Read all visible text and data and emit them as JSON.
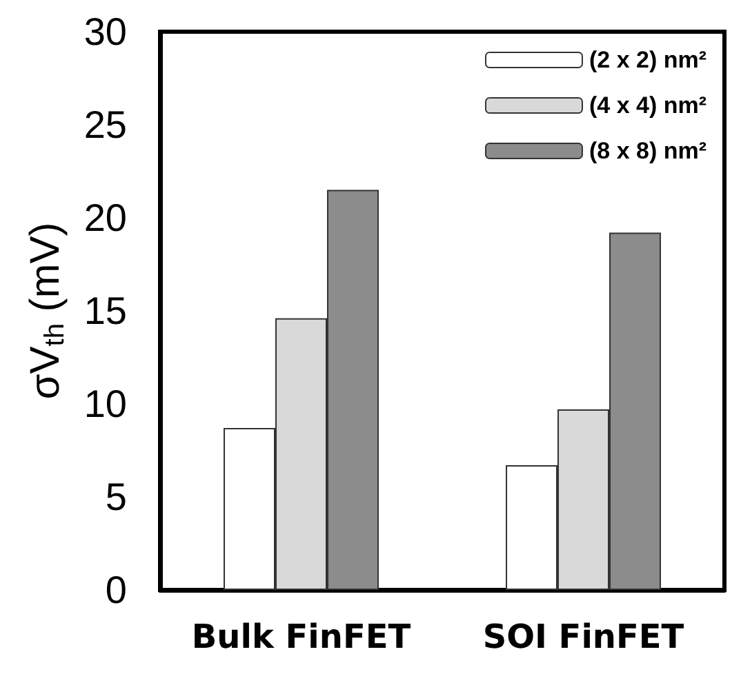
{
  "chart_data": {
    "type": "bar",
    "ylabel": "σV$_{th}$ (mV)",
    "categories": [
      "Bulk FinFET",
      "SOI FinFET"
    ],
    "series": [
      {
        "name": "(2 x 2) nm²",
        "color": "#ffffff",
        "values": [
          8.7,
          6.7
        ]
      },
      {
        "name": "(4 x 4) nm²",
        "color": "#d9d9d9",
        "values": [
          14.6,
          9.7
        ]
      },
      {
        "name": "(8 x 8) nm²",
        "color": "#8c8c8c",
        "values": [
          21.5,
          19.2
        ]
      }
    ],
    "ylim": [
      0,
      30
    ],
    "yticks": [
      0,
      5,
      10,
      15,
      20,
      25,
      30
    ],
    "grid": false,
    "legend": "top right"
  }
}
